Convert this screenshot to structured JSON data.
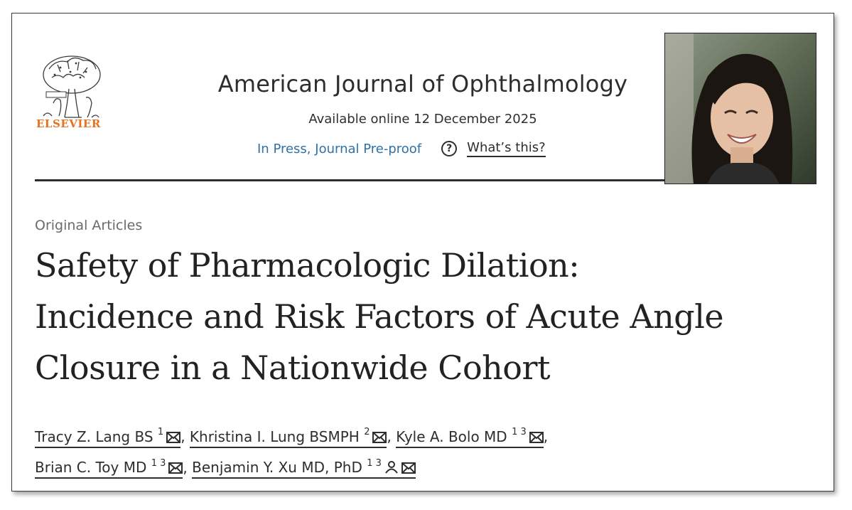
{
  "publisher": {
    "name": "ELSEVIER",
    "logo_icon": "elsevier-tree-logo-icon",
    "color": "#e9711c"
  },
  "journal": {
    "title": "American Journal of Ophthalmology",
    "available": "Available online 12 December 2025",
    "status": "In Press, Journal Pre-proof",
    "whats_this": "What’s this?",
    "link_color": "#2e72a8"
  },
  "photo": {
    "icon": "author-photo"
  },
  "article": {
    "category": "Original Articles",
    "title_lines": [
      "Safety of Pharmacologic Dilation:",
      "Incidence and Risk Factors of Acute Angle",
      "Closure in a Nationwide Cohort"
    ]
  },
  "authors": [
    {
      "name": "Tracy Z. Lang BS",
      "sup": "1",
      "icons": [
        "mail-icon"
      ]
    },
    {
      "name": "Khristina I. Lung BSMPH",
      "sup": "2",
      "icons": [
        "mail-icon"
      ]
    },
    {
      "name": "Kyle A. Bolo MD",
      "sup": "1 3",
      "icons": [
        "mail-icon"
      ]
    },
    {
      "name": "Brian C. Toy MD",
      "sup": "1 3",
      "icons": [
        "mail-icon"
      ]
    },
    {
      "name": "Benjamin Y. Xu MD, PhD",
      "sup": "1 3",
      "icons": [
        "person-icon",
        "mail-icon"
      ]
    }
  ]
}
